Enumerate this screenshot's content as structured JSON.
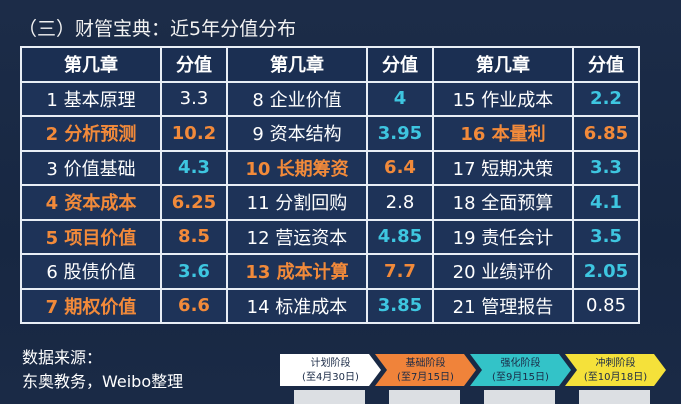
{
  "title": "（三）财管宝典：近5年分值分布",
  "table": {
    "header": [
      "第几章",
      "分值",
      "第几章",
      "分值",
      "第几章",
      "分值"
    ],
    "rows": [
      [
        {
          "chapter": "1 基本原理",
          "score": "3.3",
          "color": "#ffffff",
          "highlight": false
        },
        {
          "chapter": "8 企业价值",
          "score": "4",
          "color": "#3ec6e0",
          "highlight": false
        },
        {
          "chapter": "15 作业成本",
          "score": "2.2",
          "color": "#3ec6e0",
          "highlight": false
        }
      ],
      [
        {
          "chapter": "2 分析预测",
          "score": "10.2",
          "color": "#f28a3a",
          "highlight": true
        },
        {
          "chapter": "9 资本结构",
          "score": "3.95",
          "color": "#3ec6e0",
          "highlight": false
        },
        {
          "chapter": "16 本量利",
          "score": "6.85",
          "color": "#f28a3a",
          "highlight": true
        }
      ],
      [
        {
          "chapter": "3 价值基础",
          "score": "4.3",
          "color": "#3ec6e0",
          "highlight": false
        },
        {
          "chapter": "10 长期筹资",
          "score": "6.4",
          "color": "#f28a3a",
          "highlight": true
        },
        {
          "chapter": "17 短期决策",
          "score": "3.3",
          "color": "#3ec6e0",
          "highlight": false
        }
      ],
      [
        {
          "chapter": "4 资本成本",
          "score": "6.25",
          "color": "#f28a3a",
          "highlight": true
        },
        {
          "chapter": "11 分割回购",
          "score": "2.8",
          "color": "#ffffff",
          "highlight": false
        },
        {
          "chapter": "18 全面预算",
          "score": "4.1",
          "color": "#3ec6e0",
          "highlight": false
        }
      ],
      [
        {
          "chapter": "5 项目价值",
          "score": "8.5",
          "color": "#f28a3a",
          "highlight": true
        },
        {
          "chapter": "12 营运资本",
          "score": "4.85",
          "color": "#3ec6e0",
          "highlight": false
        },
        {
          "chapter": "19 责任会计",
          "score": "3.5",
          "color": "#3ec6e0",
          "highlight": false
        }
      ],
      [
        {
          "chapter": "6 股债价值",
          "score": "3.6",
          "color": "#3ec6e0",
          "highlight": false
        },
        {
          "chapter": "13 成本计算",
          "score": "7.7",
          "color": "#f28a3a",
          "highlight": true
        },
        {
          "chapter": "20 业绩评价",
          "score": "2.05",
          "color": "#3ec6e0",
          "highlight": false
        }
      ],
      [
        {
          "chapter": "7 期权价值",
          "score": "6.6",
          "color": "#f28a3a",
          "highlight": true
        },
        {
          "chapter": "14 标准成本",
          "score": "3.85",
          "color": "#3ec6e0",
          "highlight": false
        },
        {
          "chapter": "21 管理报告",
          "score": "0.85",
          "color": "#ffffff",
          "highlight": false
        }
      ]
    ]
  },
  "source": {
    "label": "数据来源：",
    "text": "东奥教务，Weibo整理"
  },
  "timeline": [
    {
      "phase": "计划阶段",
      "until": "(至4月30日)",
      "color": "#ffffff"
    },
    {
      "phase": "基础阶段",
      "until": "(至7月15日)",
      "color": "#f0833a"
    },
    {
      "phase": "强化阶段",
      "until": "(至9月15日)",
      "color": "#33c3c8"
    },
    {
      "phase": "冲刺阶段",
      "until": "(至10月18日)",
      "color": "#f5e13a"
    }
  ]
}
